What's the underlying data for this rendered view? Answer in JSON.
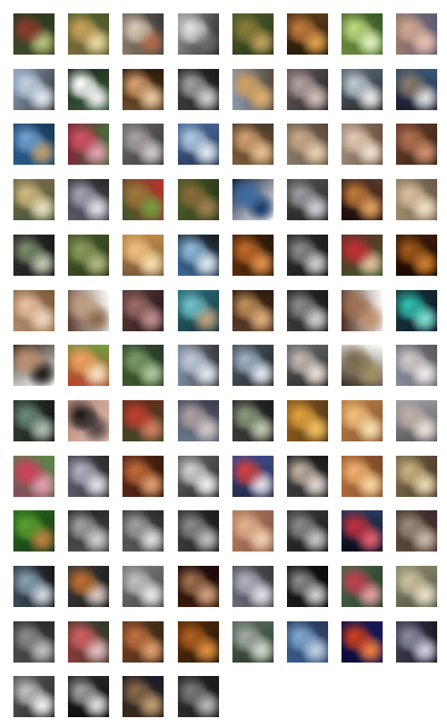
{
  "grid": {
    "columns": 8,
    "rows": 13,
    "total": 100,
    "description_colors": [
      [
        "#3e4a2a",
        "#8a3a2e",
        "#2c3a1e",
        "#b7c27a"
      ],
      [
        "#7a6a3c",
        "#c9a25a",
        "#4a5a2a",
        "#e8d8a0"
      ],
      [
        "#8a7a6a",
        "#d9c8b5",
        "#3a3a3a",
        "#b06a4a"
      ],
      [
        "#9a9a9a",
        "#e0e0e0",
        "#2a2a2a",
        "#6a6a6a"
      ],
      [
        "#4a5a2a",
        "#8a7a3a",
        "#2a3a1a",
        "#c0a060"
      ],
      [
        "#2a1a0a",
        "#c07a3a",
        "#5a3a1a",
        "#e0a050"
      ],
      [
        "#6a8a3a",
        "#c0d880",
        "#3a5a2a",
        "#e0f0c0"
      ],
      [
        "#9a7a6a",
        "#d0a890",
        "#5a5a7a",
        "#e8c0b0"
      ],
      [
        "#8aa0c0",
        "#c0d0e0",
        "#3a3a3a",
        "#e0e8f0"
      ],
      [
        "#1a2a1a",
        "#ffffff",
        "#3a5a3a",
        "#f0f0f0"
      ],
      [
        "#6a4a2a",
        "#d8a070",
        "#2a1a0a",
        "#e8c8a0"
      ],
      [
        "#3a3a3a",
        "#a0a0a0",
        "#1a1a1a",
        "#d0d0d0"
      ],
      [
        "#8a9ab0",
        "#d0a060",
        "#5a4a3a",
        "#e0b070"
      ],
      [
        "#6a5a5a",
        "#b0a0a0",
        "#2a2a2a",
        "#d0c0b8"
      ],
      [
        "#5a6a7a",
        "#c0c8d0",
        "#2a2a2a",
        "#e8e8e8"
      ],
      [
        "#1a1a2a",
        "#8a7a6a",
        "#3a5a7a",
        "#e0e0e0"
      ],
      [
        "#2a5a8a",
        "#70a0d0",
        "#1a3a5a",
        "#c0a070"
      ],
      [
        "#7a2a3a",
        "#d05060",
        "#4a6a3a",
        "#e0a0b0"
      ],
      [
        "#6a6a6a",
        "#a8a0a0",
        "#3a3a3a",
        "#d0c8c8"
      ],
      [
        "#4a6a9a",
        "#b0c8e0",
        "#2a3a5a",
        "#e0e8f0"
      ],
      [
        "#7a5a3a",
        "#d0a070",
        "#4a3a2a",
        "#e8c090"
      ],
      [
        "#8a7a6a",
        "#c8a888",
        "#5a4a3a",
        "#e8d0b0"
      ],
      [
        "#a08a7a",
        "#e0c8b0",
        "#6a5040",
        "#f0e0d0"
      ],
      [
        "#6a3a2a",
        "#b07050",
        "#3a2a1a",
        "#d09070"
      ],
      [
        "#7a6a4a",
        "#d0b880",
        "#4a5a3a",
        "#e8e0c0"
      ],
      [
        "#5a5a6a",
        "#a0a0b0",
        "#2a2a2a",
        "#e0e0e8"
      ],
      [
        "#3a5a2a",
        "#9a7a3a",
        "#c03030",
        "#70a040"
      ],
      [
        "#4a5a2a",
        "#8a6a3a",
        "#2a3a1a",
        "#a08050"
      ],
      [
        "#0a1a3a",
        "#3a6aa0",
        "#ffffff",
        "#1a3a6a"
      ],
      [
        "#4a4a4a",
        "#9a9aa0",
        "#2a2a2a",
        "#d0d0d8"
      ],
      [
        "#1a0a0a",
        "#c07a3a",
        "#5a3a2a",
        "#e0a060"
      ],
      [
        "#a08a6a",
        "#d8c0a0",
        "#6a5a4a",
        "#f0e0c8"
      ],
      [
        "#2a2a2a",
        "#7a8a6a",
        "#1a1a1a",
        "#c0c8b0"
      ],
      [
        "#4a5a2a",
        "#8a9a5a",
        "#2a3a1a",
        "#b0b880"
      ],
      [
        "#c08a4a",
        "#f0c080",
        "#7a5a3a",
        "#f8e0b0"
      ],
      [
        "#3a6a9a",
        "#90b8d8",
        "#1a1a1a",
        "#e0e8f0"
      ],
      [
        "#5a2a0a",
        "#c06a2a",
        "#2a1a0a",
        "#e09050"
      ],
      [
        "#2a2a2a",
        "#8a8a8a",
        "#1a1a1a",
        "#d0d0d0"
      ],
      [
        "#6a2a2a",
        "#c03030",
        "#3a5a2a",
        "#e0c0a0"
      ],
      [
        "#1a0a00",
        "#a05a1a",
        "#3a1a0a",
        "#d08030"
      ],
      [
        "#b08a6a",
        "#e8c0a0",
        "#7a5a3a",
        "#f0d8c0"
      ],
      [
        "#5a3a2a",
        "#c0a080",
        "#ffffff",
        "#8a6a4a"
      ],
      [
        "#5a3a3a",
        "#9a6a6a",
        "#2a1a1a",
        "#c09090"
      ],
      [
        "#2a6a7a",
        "#70c0c8",
        "#1a3a3a",
        "#c0a080"
      ],
      [
        "#5a3a2a",
        "#c0905a",
        "#2a1a0a",
        "#e0b080"
      ],
      [
        "#3a3a3a",
        "#8a8a8a",
        "#1a1a1a",
        "#d0d0d0"
      ],
      [
        "#4a2a1a",
        "#a07050",
        "#ffffff",
        "#c09070"
      ],
      [
        "#1a3a3a",
        "#30c0b0",
        "#0a1a2a",
        "#80e0d0"
      ],
      [
        "#3a2a1a",
        "#c09070",
        "#ffffff",
        "#1a1a1a"
      ],
      [
        "#c04030",
        "#f0a060",
        "#70a040",
        "#f8e0c0"
      ],
      [
        "#3a5a2a",
        "#7a9a6a",
        "#2a3a2a",
        "#b0c8a0"
      ],
      [
        "#7a8aa0",
        "#c0c8d8",
        "#3a3a3a",
        "#e0e8f0"
      ],
      [
        "#4a5a6a",
        "#a0b0c0",
        "#2a2a2a",
        "#e0e8f0"
      ],
      [
        "#6a6a6a",
        "#c0b8b0",
        "#2a2a2a",
        "#e8e0d8"
      ],
      [
        "#3a2a1a",
        "#7a6a4a",
        "#ffffff",
        "#a09060"
      ],
      [
        "#8a8aa0",
        "#d0c8c8",
        "#5a5a5a",
        "#f0e8e8"
      ],
      [
        "#2a3a2a",
        "#6a8a7a",
        "#1a1a1a",
        "#b0c0b0"
      ],
      [
        "#b08070",
        "#1a1a1a",
        "#e0c0b0",
        "#5a4a4a"
      ],
      [
        "#6a2a1a",
        "#c04030",
        "#3a4a2a",
        "#d08060"
      ],
      [
        "#6a7a8a",
        "#b0a0a0",
        "#3a3a4a",
        "#d0c8c8"
      ],
      [
        "#3a3a3a",
        "#8a9a7a",
        "#1a1a1a",
        "#c0c8b0"
      ],
      [
        "#8a5a1a",
        "#e0a040",
        "#5a3a1a",
        "#f0c060"
      ],
      [
        "#c08040",
        "#f0c080",
        "#8a5a3a",
        "#f8e0b0"
      ],
      [
        "#9a9aa0",
        "#c0b0a8",
        "#5a5a5a",
        "#e8e0d8"
      ],
      [
        "#8a4a5a",
        "#d0405a",
        "#5a8a4a",
        "#e0a0b0"
      ],
      [
        "#5a5a6a",
        "#b0b0c0",
        "#2a2a2a",
        "#e0e0e8"
      ],
      [
        "#5a2a1a",
        "#c06a3a",
        "#3a1a0a",
        "#e0a070"
      ],
      [
        "#6a6a6a",
        "#d0d0d0",
        "#2a2a2a",
        "#f0f0f0"
      ],
      [
        "#3a4a8a",
        "#d04040",
        "#2a2a4a",
        "#e0e0e8"
      ],
      [
        "#3a3a3a",
        "#c0b0a0",
        "#1a1a1a",
        "#e0d8d0"
      ],
      [
        "#b06a3a",
        "#f0b070",
        "#7a4a2a",
        "#f8d8a0"
      ],
      [
        "#7a6a4a",
        "#c8b080",
        "#4a3a2a",
        "#e8d8b0"
      ],
      [
        "#2a6a1a",
        "#5aa030",
        "#1a3a1a",
        "#c08040"
      ],
      [
        "#4a4a4a",
        "#a0a0a0",
        "#2a2a2a",
        "#d0d0d0"
      ],
      [
        "#5a5a5a",
        "#a0a0a0",
        "#2a2a2a",
        "#e0e0e0"
      ],
      [
        "#3a3a3a",
        "#8a8a8a",
        "#1a1a1a",
        "#c0c0c0"
      ],
      [
        "#b07a5a",
        "#e0b090",
        "#8a5a4a",
        "#f0d0b0"
      ],
      [
        "#3a3a3a",
        "#8a8a8a",
        "#1a1a1a",
        "#c8c8c8"
      ],
      [
        "#0a0a1a",
        "#c03040",
        "#2a3a5a",
        "#e06070"
      ],
      [
        "#5a4a3a",
        "#9a8a7a",
        "#3a2a2a",
        "#c8b8a8"
      ],
      [
        "#3a4a5a",
        "#8aa0b0",
        "#1a1a1a",
        "#d0d8e0"
      ],
      [
        "#3a3a3a",
        "#c07030",
        "#1a1a1a",
        "#d8c8c0"
      ],
      [
        "#7a7a7a",
        "#c0c0c0",
        "#4a4a4a",
        "#e8e8e8"
      ],
      [
        "#3a1a0a",
        "#a07050",
        "#1a0a0a",
        "#d0a080"
      ],
      [
        "#6a6a7a",
        "#b0b0c0",
        "#3a3a3a",
        "#e0e0e8"
      ],
      [
        "#1a1a1a",
        "#8a8a8a",
        "#0a0a0a",
        "#d0d0d0"
      ],
      [
        "#4a6a4a",
        "#c04050",
        "#2a3a2a",
        "#e0a0a0"
      ],
      [
        "#8a8a6a",
        "#c8c0a0",
        "#5a5a4a",
        "#e8e0c8"
      ],
      [
        "#4a4a4a",
        "#8a8a8a",
        "#2a2a2a",
        "#c0c0c0"
      ],
      [
        "#8a3a3a",
        "#d06060",
        "#2a3a2a",
        "#e0c0c0"
      ],
      [
        "#6a3a1a",
        "#c07040",
        "#3a2a1a",
        "#e0a070"
      ],
      [
        "#5a2a0a",
        "#b06020",
        "#2a1a0a",
        "#e09040"
      ],
      [
        "#5a6a5a",
        "#a0a8a0",
        "#2a3a2a",
        "#d0d8d0"
      ],
      [
        "#3a5a8a",
        "#80a8d0",
        "#2a3a5a",
        "#c0d0e0"
      ],
      [
        "#0a0a3a",
        "#d04020",
        "#1a1a5a",
        "#f08040"
      ],
      [
        "#3a3a4a",
        "#8a8aa0",
        "#1a1a2a",
        "#d0d0e0"
      ],
      [
        "#5a5a5a",
        "#c0c0c0",
        "#2a2a2a",
        "#f0f0f0"
      ],
      [
        "#2a2a2a",
        "#a0a0a0",
        "#0a0a0a",
        "#e0e0e0"
      ],
      [
        "#3a2a1a",
        "#8a6a4a",
        "#1a1a2a",
        "#c0a070"
      ],
      [
        "#2a2a2a",
        "#7a7a7a",
        "#1a1a1a",
        "#b8b8b8"
      ]
    ]
  }
}
